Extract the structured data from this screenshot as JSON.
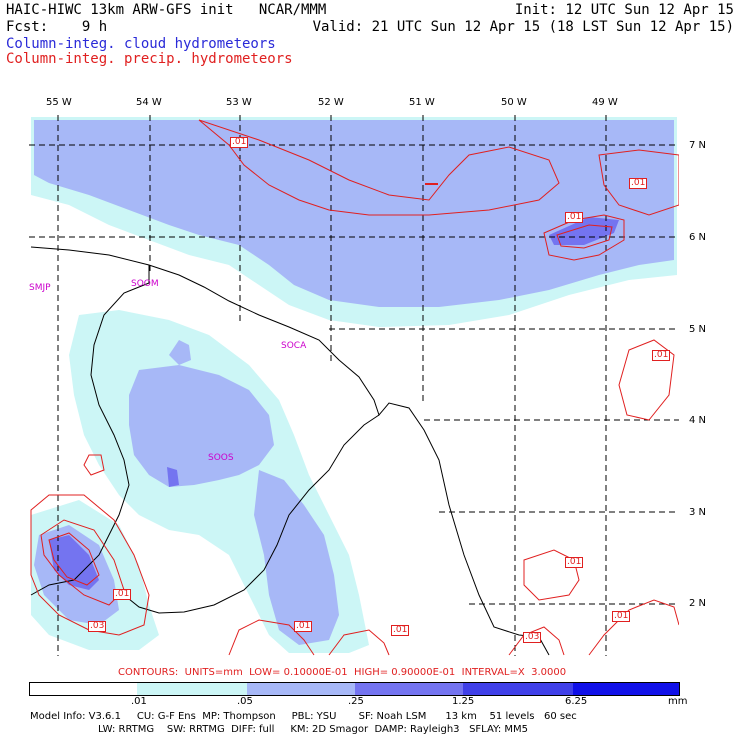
{
  "header": {
    "line1_left": "HAIC-HIWC 13km ARW-GFS init   NCAR/MMM",
    "line1_right": "Init: 12 UTC Sun 12 Apr 15",
    "line2_left": "Fcst:    9 h",
    "line2_right": "Valid: 21 UTC Sun 12 Apr 15 (18 LST Sun 12 Apr 15)",
    "field_cloud": "Column-integ. cloud hydrometeors",
    "field_precip": "Column-integ. precip. hydrometeors"
  },
  "axes": {
    "lon_labels": [
      "55 W",
      "54 W",
      "53 W",
      "52 W",
      "51 W",
      "50 W",
      "49 W"
    ],
    "lat_labels": [
      "7 N",
      "6 N",
      "5 N",
      "4 N",
      "3 N",
      "2 N"
    ]
  },
  "stations": [
    "SMJP",
    "SOOM",
    "SOCA",
    "SOOS"
  ],
  "contour_labels": [
    ".01",
    ".01",
    ".01",
    ".01",
    ".01",
    ".01",
    ".01",
    ".03",
    ".01",
    ".03",
    ".01"
  ],
  "contours_line": "CONTOURS:  UNITS=mm  LOW= 0.10000E-01  HIGH= 0.90000E-01  INTERVAL=X  3.0000",
  "colorbar": {
    "ticks": [
      ".01",
      ".05",
      ".25",
      "1.25",
      "6.25",
      "mm"
    ],
    "colors": [
      "#ffffff",
      "#ccf6f6",
      "#a7b8f7",
      "#7474f0",
      "#4040e8",
      "#1010e8"
    ]
  },
  "footer": {
    "line1": "Model Info: V3.6.1     CU: G-F Ens  MP: Thompson     PBL: YSU       SF: Noah LSM      13 km    51 levels   60 sec",
    "line2": "LW: RRTMG    SW: RRTMG  DIFF: full     KM: 2D Smagor  DAMP: Rayleigh3   SFLAY: MM5"
  },
  "colors": {
    "cloud_light": "#ccf6f6",
    "cloud_mid": "#a7b8f7",
    "cloud_dark": "#7474f0",
    "precip_contour": "#e02020",
    "station": "#cc00cc"
  }
}
